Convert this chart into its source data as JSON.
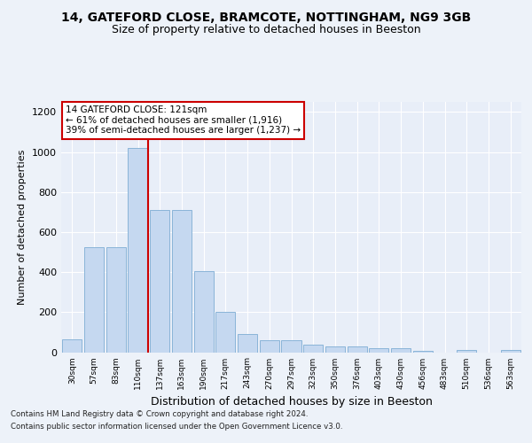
{
  "title": "14, GATEFORD CLOSE, BRAMCOTE, NOTTINGHAM, NG9 3GB",
  "subtitle": "Size of property relative to detached houses in Beeston",
  "xlabel": "Distribution of detached houses by size in Beeston",
  "ylabel": "Number of detached properties",
  "categories": [
    "30sqm",
    "57sqm",
    "83sqm",
    "110sqm",
    "137sqm",
    "163sqm",
    "190sqm",
    "217sqm",
    "243sqm",
    "270sqm",
    "297sqm",
    "323sqm",
    "350sqm",
    "376sqm",
    "403sqm",
    "430sqm",
    "456sqm",
    "483sqm",
    "510sqm",
    "536sqm",
    "563sqm"
  ],
  "values": [
    65,
    525,
    525,
    1020,
    710,
    710,
    405,
    200,
    90,
    60,
    60,
    38,
    30,
    30,
    18,
    18,
    5,
    0,
    10,
    0,
    10
  ],
  "bar_color": "#c5d8f0",
  "bar_edgecolor": "#8ab4d8",
  "vline_x_index": 3,
  "vline_color": "#cc0000",
  "annotation_text": "14 GATEFORD CLOSE: 121sqm\n← 61% of detached houses are smaller (1,916)\n39% of semi-detached houses are larger (1,237) →",
  "annotation_box_facecolor": "#ffffff",
  "annotation_box_edgecolor": "#cc0000",
  "ylim": [
    0,
    1250
  ],
  "yticks": [
    0,
    200,
    400,
    600,
    800,
    1000,
    1200
  ],
  "footer_line1": "Contains HM Land Registry data © Crown copyright and database right 2024.",
  "footer_line2": "Contains public sector information licensed under the Open Government Licence v3.0.",
  "bg_color": "#edf2f9",
  "plot_bg_color": "#e8eef8",
  "title_fontsize": 10,
  "subtitle_fontsize": 9,
  "ylabel_fontsize": 8,
  "xlabel_fontsize": 9
}
